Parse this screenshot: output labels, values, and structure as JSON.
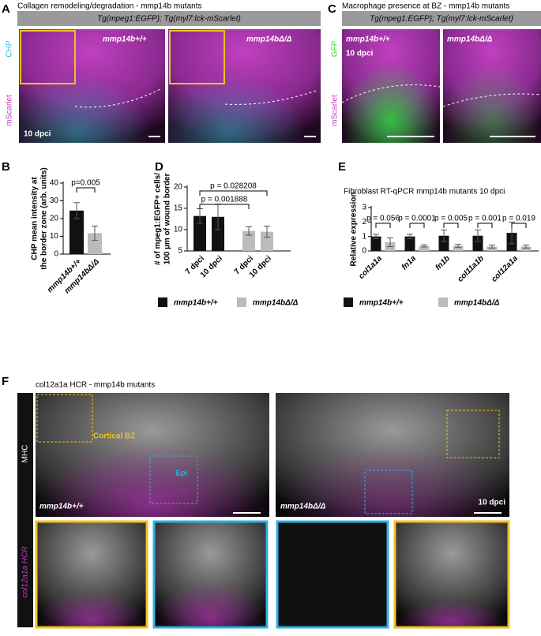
{
  "figure": {
    "panel_labels": [
      "A",
      "B",
      "C",
      "D",
      "E",
      "F"
    ],
    "a": {
      "title": "Collagen remodeling/degradation - mmp14b mutants",
      "banner": "Tg(mpeg1:EGFP); Tg(myl7:lck-mScarlet)",
      "channels": [
        "CHP",
        "mScarlet"
      ],
      "labels": [
        "mmp14b+/+",
        "mmp14bΔ/Δ",
        "10 dpci"
      ]
    },
    "c": {
      "title": "Macrophage presence at BZ - mmp14b mutants",
      "banner": "Tg(mpeg1:EGFP); Tg(myl7:lck-mScarlet)",
      "channels": [
        "GFP",
        "mScarlet"
      ],
      "labels": [
        "mmp14b+/+",
        "mmp14bΔ/Δ",
        "10 dpci"
      ]
    },
    "f": {
      "title": "col12a1a HCR - mmp14b mutants",
      "channels": [
        "MHC",
        "col12a1a HCR"
      ],
      "labels": [
        "Cortical BZ",
        "Epi",
        "mmp14b+/+",
        "mmp14bΔ/Δ",
        "10 dpci"
      ]
    }
  },
  "chart_data": [
    {
      "type": "bar",
      "ylabel": [
        "CHP mean intensity at",
        "the border zone (arb. units)"
      ],
      "categories": [
        "mmp14b+/+",
        "mmp14bΔ/Δ"
      ],
      "values": [
        24.5,
        11.8
      ],
      "errors": [
        4.5,
        4
      ],
      "colors": [
        "#111111",
        "#bbbbbb"
      ],
      "ylim": [
        0,
        40
      ],
      "yticks": [
        0,
        10,
        20,
        30,
        40
      ],
      "annotations": [
        "p=0.005"
      ]
    },
    {
      "type": "bar",
      "ylabel": [
        "# of mpeg1:EGFP+ cells/",
        "100 µm of wound border"
      ],
      "categories": [
        "7 dpci",
        "10 dpci"
      ],
      "series": [
        {
          "name": "mmp14b+/+",
          "color": "#111111",
          "values": [
            13.2,
            13
          ],
          "errors": [
            1.7,
            3
          ]
        },
        {
          "name": "mmp14bΔ/Δ",
          "color": "#bbbbbb",
          "values": [
            9.7,
            9.5
          ],
          "errors": [
            1,
            1.3
          ]
        }
      ],
      "ylim": [
        5,
        20
      ],
      "yticks": [
        5,
        10,
        15,
        20
      ],
      "annotations": [
        "p = 0.028208",
        "p = 0.001888"
      ]
    },
    {
      "type": "bar",
      "title": "Fibroblast RT-qPCR mmp14b mutants 10 dpci",
      "ylabel": [
        "Relative expression"
      ],
      "categories": [
        "col1a1a",
        "fn1a",
        "fn1b",
        "col11a1b",
        "col12a1a"
      ],
      "series": [
        {
          "name": "mmp14b+/+",
          "color": "#111111",
          "values": [
            1,
            1,
            1.05,
            1.05,
            1.25
          ],
          "errors": [
            0.15,
            0.15,
            0.4,
            0.4,
            0.75
          ]
        },
        {
          "name": "mmp14bΔ/Δ",
          "color": "#bbbbbb",
          "values": [
            0.6,
            0.35,
            0.35,
            0.3,
            0.3
          ],
          "errors": [
            0.3,
            0.08,
            0.1,
            0.1,
            0.1
          ]
        }
      ],
      "ylim": [
        0,
        3
      ],
      "yticks": [
        0,
        1,
        2,
        3
      ],
      "annotations": [
        "p = 0.056",
        "p = 0.0001",
        "p = 0.005",
        "p = 0.001",
        "p = 0.019"
      ]
    }
  ]
}
